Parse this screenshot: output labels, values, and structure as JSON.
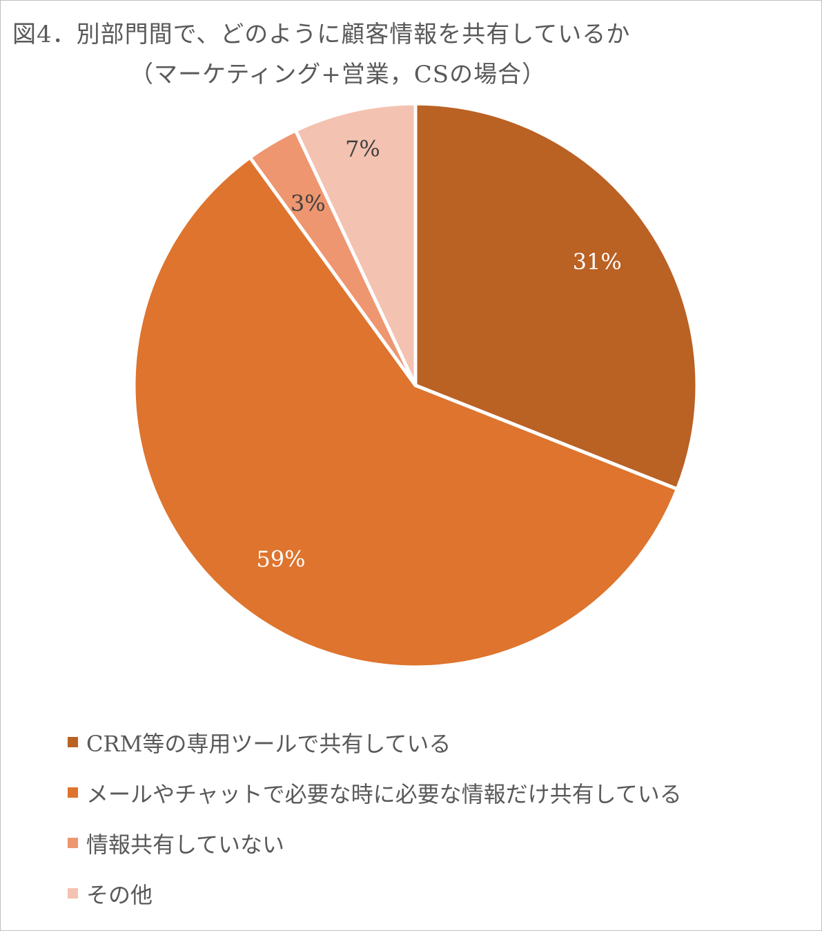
{
  "chart_data": {
    "type": "pie",
    "title": "図4．別部門間で、どのように顧客情報を共有しているか",
    "subtitle": "（マーケティング+営業，CSの場合）",
    "categories": [
      "CRM等の専用ツールで共有している",
      "メールやチャットで必要な時に必要な情報だけ共有している",
      "情報共有していない",
      "その他"
    ],
    "values": [
      31,
      59,
      3,
      7
    ],
    "data_labels": [
      "31%",
      "59%",
      "3%",
      "7%"
    ],
    "colors": [
      "#BA6124",
      "#DE742E",
      "#EE9670",
      "#F4C2B1"
    ],
    "label_colors": [
      "#ffffff",
      "#ffffff",
      "#404040",
      "#404040"
    ],
    "legend_position": "bottom"
  }
}
